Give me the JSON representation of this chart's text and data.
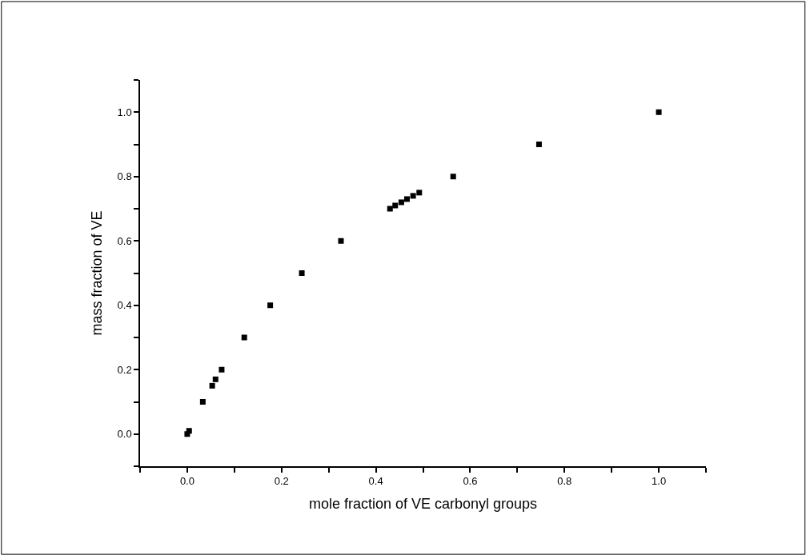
{
  "chart_data": {
    "type": "scatter",
    "xlabel": "mole fraction of VE carbonyl groups",
    "ylabel": "mass fraction of VE",
    "x": [
      0.0,
      0.004,
      0.033,
      0.053,
      0.06,
      0.073,
      0.121,
      0.176,
      0.243,
      0.326,
      0.43,
      0.441,
      0.454,
      0.466,
      0.479,
      0.492,
      0.564,
      0.746,
      1.0
    ],
    "series": [
      {
        "color": "#000000",
        "values": [
          0.0,
          0.01,
          0.1,
          0.15,
          0.17,
          0.2,
          0.3,
          0.4,
          0.5,
          0.6,
          0.7,
          0.71,
          0.72,
          0.73,
          0.74,
          0.75,
          0.8,
          0.9,
          1.0
        ]
      }
    ],
    "xlim": [
      -0.1,
      1.1
    ],
    "ylim": [
      -0.1,
      1.1
    ],
    "xticks": [
      {
        "value": -0.1,
        "label": null
      },
      "0.0",
      {
        "value": 0.1,
        "label": null
      },
      {
        "value": 0.2,
        "label": "0.2"
      },
      {
        "value": 0.3,
        "label": null
      },
      {
        "value": 0.4,
        "label": "0.4"
      },
      {
        "value": 0.5,
        "label": null
      },
      {
        "value": 0.6,
        "label": "0.6"
      },
      {
        "value": 0.7,
        "label": null
      },
      {
        "value": 0.8,
        "label": "0.8"
      },
      {
        "value": 0.9,
        "label": null
      },
      {
        "value": 1.0,
        "label": "1.0"
      },
      {
        "value": 1.1,
        "label": null
      }
    ],
    "yticks": [
      {
        "value": -0.1,
        "label": null
      },
      {
        "value": 0.0,
        "label": "0.0"
      },
      {
        "value": 0.1,
        "label": null
      },
      {
        "value": 0.2,
        "label": "0.2"
      },
      {
        "value": 0.3,
        "label": null
      },
      {
        "value": 0.4,
        "label": "0.4"
      },
      {
        "value": 0.5,
        "label": null
      },
      {
        "value": 0.6,
        "label": "0.6"
      },
      {
        "value": 0.7,
        "label": null
      },
      {
        "value": 0.8,
        "label": "0.8"
      },
      {
        "value": 0.9,
        "label": null
      },
      {
        "value": 1.0,
        "label": "1.0"
      },
      {
        "value": 1.1,
        "label": null
      }
    ],
    "marker": "square"
  }
}
